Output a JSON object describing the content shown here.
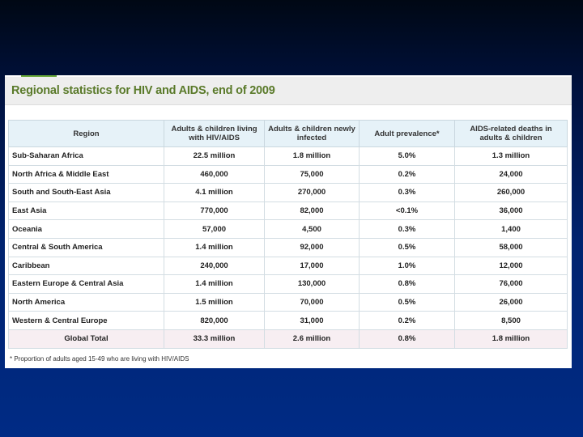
{
  "slide": {
    "title": "Regional statistics for HIV and AIDS, end of 2009",
    "footnote": "* Proportion of adults aged 15-49 who are living with HIV/AIDS"
  },
  "table": {
    "headers": [
      "Region",
      "Adults & children living with HIV/AIDS",
      "Adults & children newly infected",
      "Adult prevalence*",
      "AIDS-related deaths in adults & children"
    ],
    "rows": [
      [
        "Sub-Saharan Africa",
        "22.5 million",
        "1.8 million",
        "5.0%",
        "1.3 million"
      ],
      [
        "North Africa & Middle East",
        "460,000",
        "75,000",
        "0.2%",
        "24,000"
      ],
      [
        "South and South-East Asia",
        "4.1 million",
        "270,000",
        "0.3%",
        "260,000"
      ],
      [
        "East Asia",
        "770,000",
        "82,000",
        "<0.1%",
        "36,000"
      ],
      [
        "Oceania",
        "57,000",
        "4,500",
        "0.3%",
        "1,400"
      ],
      [
        "Central & South America",
        "1.4 million",
        "92,000",
        "0.5%",
        "58,000"
      ],
      [
        "Caribbean",
        "240,000",
        "17,000",
        "1.0%",
        "12,000"
      ],
      [
        "Eastern Europe & Central Asia",
        "1.4 million",
        "130,000",
        "0.8%",
        "76,000"
      ],
      [
        "North America",
        "1.5 million",
        "70,000",
        "0.5%",
        "26,000"
      ],
      [
        "Western & Central Europe",
        "820,000",
        "31,000",
        "0.2%",
        "8,500"
      ]
    ],
    "total": [
      "Global Total",
      "33.3 million",
      "2.6 million",
      "0.8%",
      "1.8 million"
    ]
  }
}
